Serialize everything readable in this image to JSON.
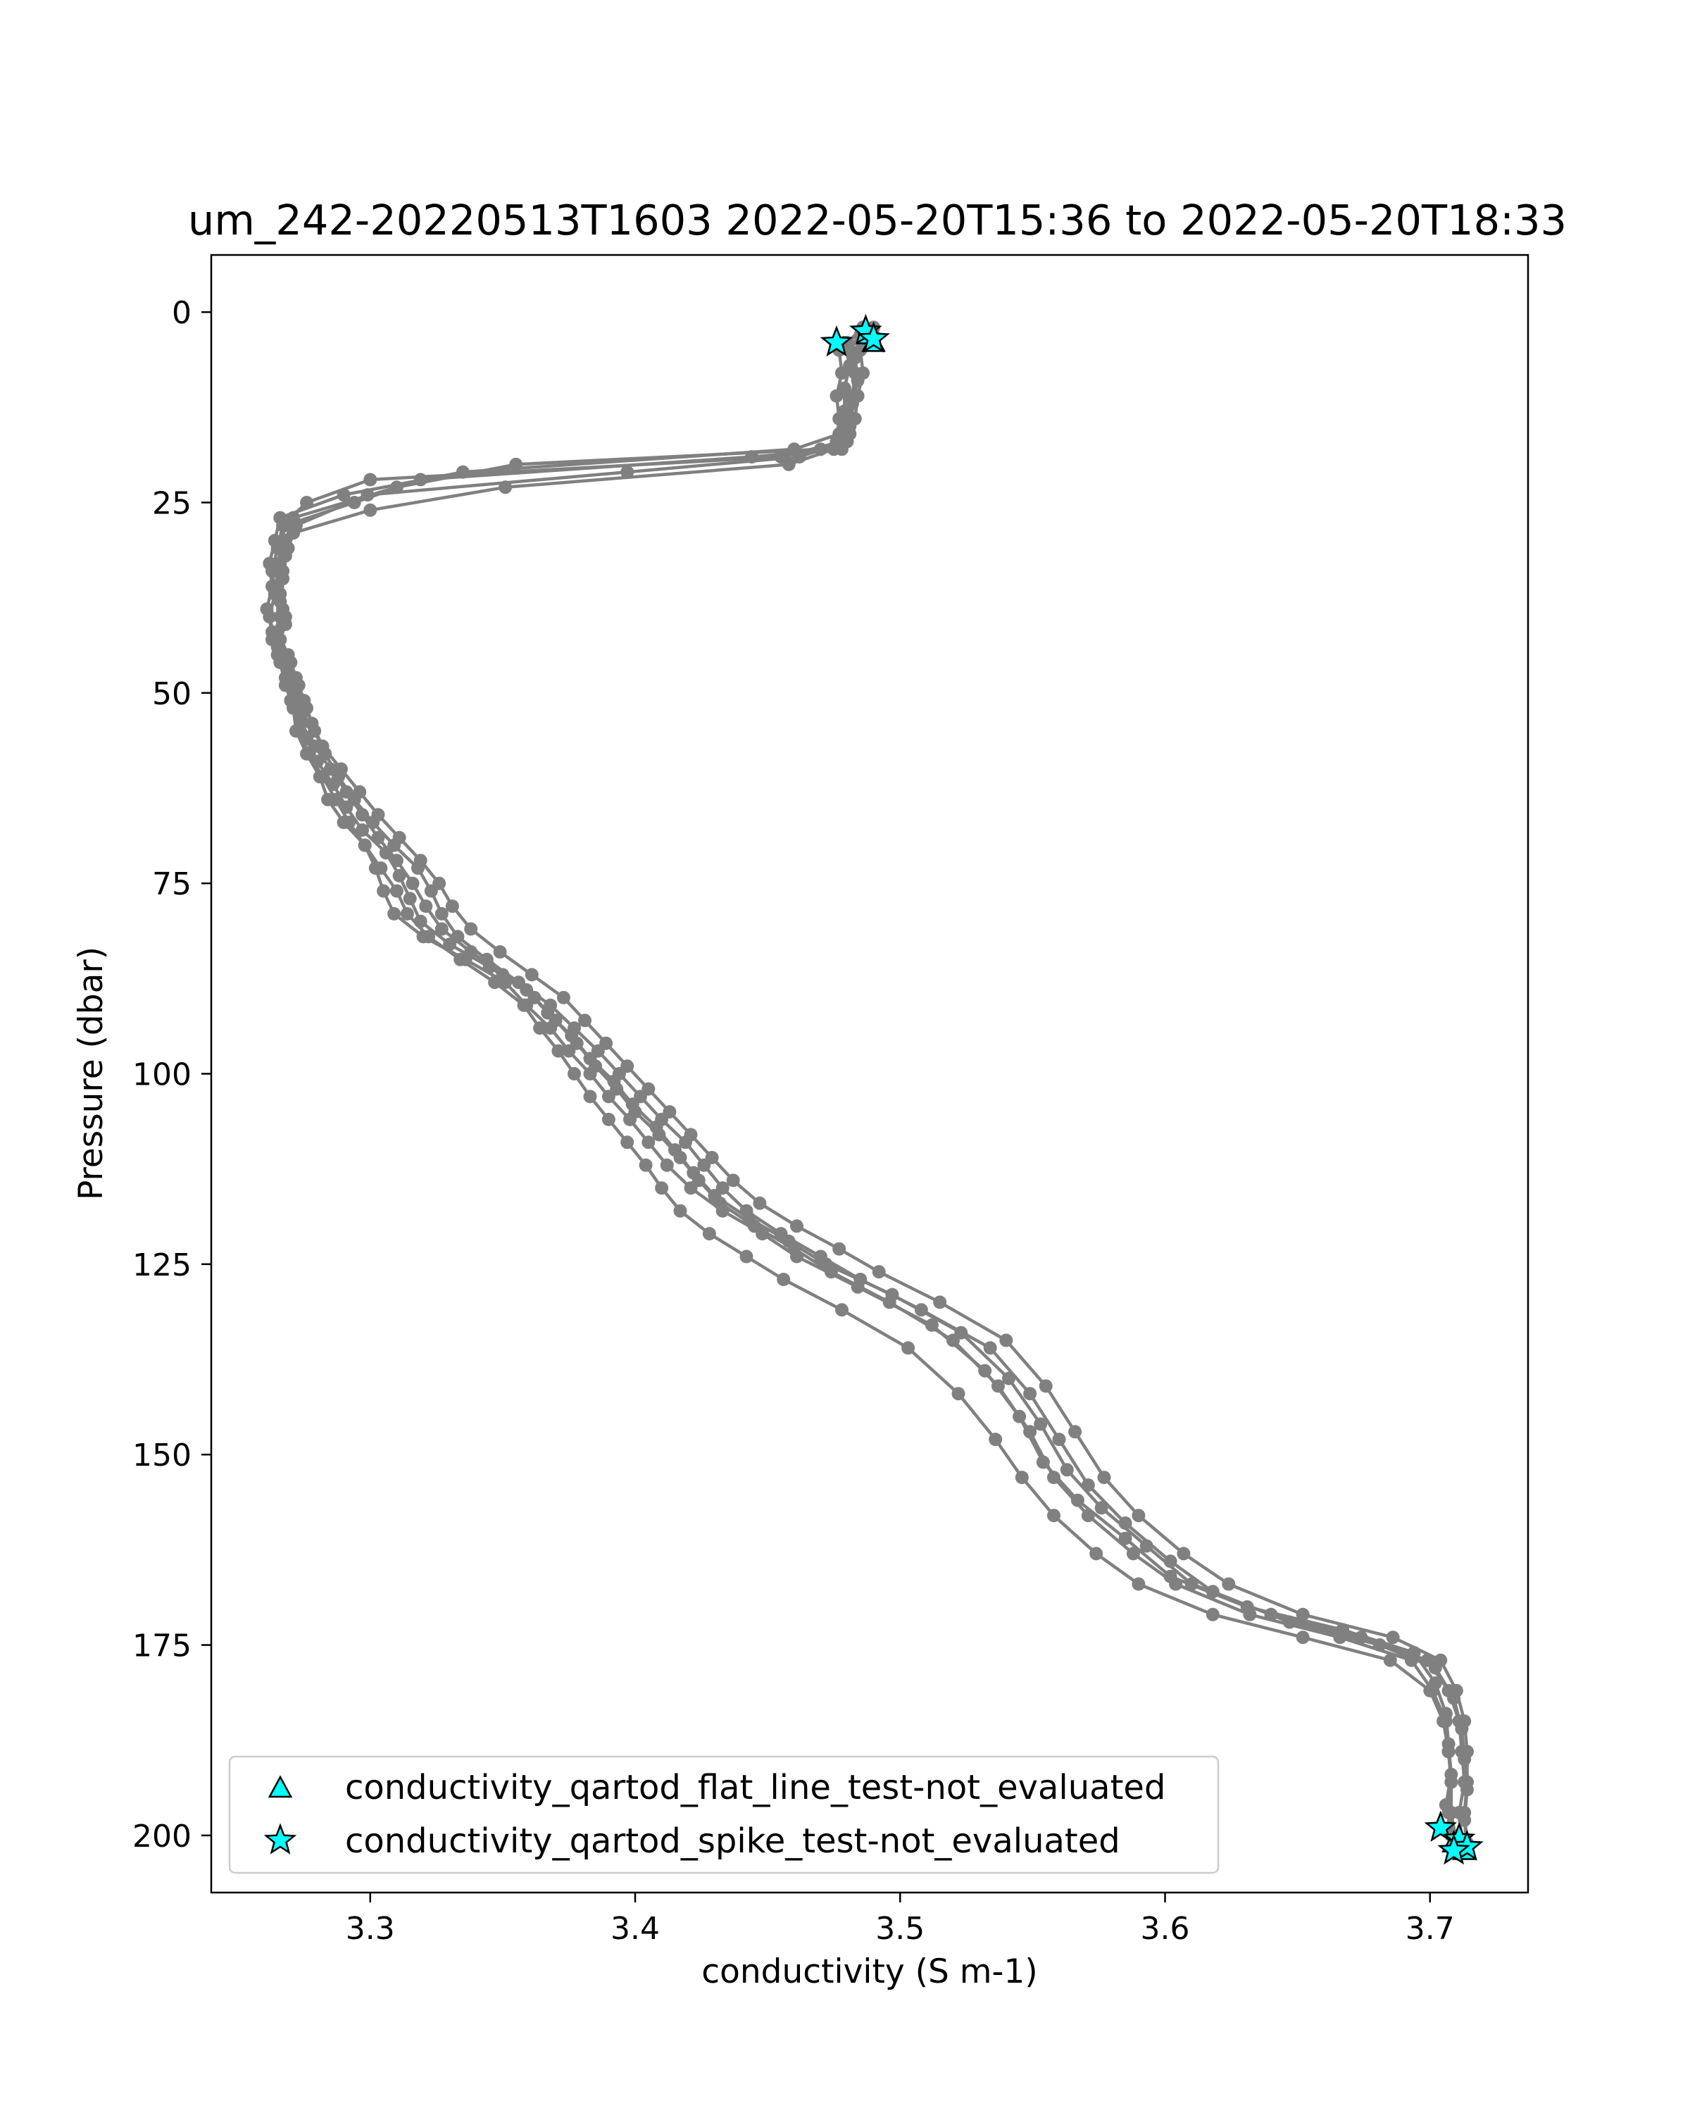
{
  "chart_data": {
    "type": "line",
    "title": "um_242-20220513T1603 2022-05-20T15:36 to 2022-05-20T18:33",
    "xlabel": "conductivity (S m-1)",
    "ylabel": "Pressure (dbar)",
    "xlim": [
      3.24,
      3.737
    ],
    "ylim": [
      207.5,
      -7.5
    ],
    "y_inverted": true,
    "grid": false,
    "x_ticks": [
      3.3,
      3.4,
      3.5,
      3.6,
      3.7
    ],
    "x_tick_labels": [
      "3.3",
      "3.4",
      "3.5",
      "3.6",
      "3.7"
    ],
    "y_ticks": [
      0,
      25,
      50,
      75,
      100,
      125,
      150,
      175,
      200
    ],
    "y_tick_labels": [
      "0",
      "25",
      "50",
      "75",
      "100",
      "125",
      "150",
      "175",
      "200"
    ],
    "legend": {
      "position": "lower-left"
    },
    "colors": {
      "profile_line": "#808080",
      "flag_marker": "#00ffff",
      "marker_edge": "#000000"
    },
    "series": [
      {
        "style": "profile",
        "x": [
          3.487,
          3.477,
          3.478,
          3.476,
          3.477,
          3.476,
          3.478,
          3.444,
          3.319,
          3.294,
          3.268,
          3.266,
          3.265,
          3.264,
          3.266,
          3.263,
          3.267,
          3.27,
          3.271,
          3.272,
          3.276,
          3.281,
          3.284,
          3.29,
          3.298,
          3.302,
          3.305,
          3.309,
          3.32,
          3.336,
          3.351,
          3.359,
          3.368,
          3.375,
          3.383,
          3.39,
          3.398,
          3.405,
          3.412,
          3.421,
          3.433,
          3.448,
          3.461,
          3.484,
          3.512,
          3.532,
          3.545,
          3.554,
          3.567,
          3.585,
          3.602,
          3.631,
          3.667,
          3.694,
          3.702,
          3.706,
          3.707,
          3.708,
          3.706,
          3.708
        ],
        "y": [
          3,
          5,
          8,
          11,
          14,
          17,
          18,
          19,
          22,
          25,
          28,
          31,
          34,
          37,
          40,
          43,
          46,
          49,
          52,
          55,
          58,
          61,
          64,
          67,
          70,
          73,
          76,
          79,
          82,
          85,
          88,
          91,
          94,
          97,
          100,
          103,
          106,
          109,
          112,
          115,
          118,
          121,
          124,
          128,
          133,
          139,
          145,
          151,
          156,
          161,
          166,
          170,
          173,
          176,
          180,
          184,
          188,
          192,
          196,
          200
        ]
      },
      {
        "style": "profile",
        "x": [
          3.49,
          3.479,
          3.481,
          3.479,
          3.48,
          3.478,
          3.475,
          3.458,
          3.351,
          3.3,
          3.271,
          3.268,
          3.267,
          3.266,
          3.268,
          3.265,
          3.269,
          3.272,
          3.274,
          3.276,
          3.28,
          3.286,
          3.291,
          3.297,
          3.306,
          3.311,
          3.315,
          3.319,
          3.33,
          3.345,
          3.359,
          3.367,
          3.376,
          3.383,
          3.392,
          3.399,
          3.408,
          3.415,
          3.422,
          3.43,
          3.443,
          3.458,
          3.472,
          3.497,
          3.523,
          3.541,
          3.553,
          3.563,
          3.576,
          3.593,
          3.61,
          3.64,
          3.674,
          3.699,
          3.707,
          3.711,
          3.712,
          3.713,
          3.711,
          3.712
        ],
        "y": [
          2,
          4,
          7,
          10,
          13,
          16,
          18,
          20,
          23,
          26,
          29,
          32,
          35,
          38,
          41,
          44,
          47,
          50,
          53,
          56,
          59,
          62,
          65,
          68,
          71,
          74,
          77,
          80,
          83,
          86,
          89,
          92,
          95,
          98,
          101,
          104,
          107,
          110,
          113,
          116,
          119,
          122,
          125,
          129,
          134,
          140,
          146,
          152,
          157,
          162,
          167,
          171,
          174,
          177,
          181,
          185,
          189,
          193,
          197,
          201
        ]
      },
      {
        "style": "profile",
        "x": [
          3.485,
          3.481,
          3.483,
          3.482,
          3.482,
          3.48,
          3.462,
          3.397,
          3.299,
          3.272,
          3.269,
          3.267,
          3.266,
          3.268,
          3.266,
          3.27,
          3.273,
          3.276,
          3.279,
          3.283,
          3.288,
          3.294,
          3.301,
          3.309,
          3.318,
          3.323,
          3.327,
          3.333,
          3.344,
          3.356,
          3.368,
          3.377,
          3.386,
          3.394,
          3.402,
          3.41,
          3.419,
          3.426,
          3.433,
          3.442,
          3.455,
          3.47,
          3.485,
          3.508,
          3.534,
          3.549,
          3.56,
          3.571,
          3.585,
          3.602,
          3.618,
          3.647,
          3.681,
          3.702,
          3.709,
          3.712,
          3.713,
          3.714,
          3.713,
          3.714
        ],
        "y": [
          3,
          5,
          8,
          11,
          14,
          17,
          19,
          21,
          24,
          28,
          31,
          34,
          37,
          40,
          43,
          46,
          49,
          52,
          55,
          58,
          61,
          64,
          67,
          70,
          73,
          76,
          79,
          82,
          85,
          88,
          91,
          94,
          97,
          100,
          103,
          106,
          109,
          112,
          115,
          118,
          121,
          124,
          127,
          131,
          136,
          142,
          148,
          154,
          159,
          164,
          168,
          172,
          175,
          178,
          182,
          186,
          190,
          194,
          198,
          202
        ]
      },
      {
        "style": "profile",
        "x": [
          3.488,
          3.483,
          3.484,
          3.482,
          3.481,
          3.478,
          3.455,
          3.3,
          3.276,
          3.267,
          3.265,
          3.263,
          3.264,
          3.262,
          3.264,
          3.266,
          3.268,
          3.271,
          3.273,
          3.277,
          3.282,
          3.287,
          3.292,
          3.298,
          3.304,
          3.31,
          3.314,
          3.322,
          3.334,
          3.347,
          3.358,
          3.364,
          3.371,
          3.377,
          3.383,
          3.39,
          3.397,
          3.404,
          3.41,
          3.417,
          3.428,
          3.442,
          3.456,
          3.478,
          3.503,
          3.522,
          3.536,
          3.546,
          3.558,
          3.574,
          3.59,
          3.618,
          3.652,
          3.685,
          3.7,
          3.705,
          3.707,
          3.708,
          3.708,
          3.71
        ],
        "y": [
          4,
          6,
          9,
          12,
          15,
          17,
          19,
          22,
          25,
          28,
          31,
          34,
          37,
          40,
          43,
          46,
          49,
          52,
          55,
          58,
          61,
          64,
          67,
          70,
          73,
          76,
          79,
          82,
          85,
          88,
          91,
          94,
          97,
          100,
          103,
          106,
          109,
          112,
          115,
          118,
          121,
          124,
          127,
          131,
          136,
          142,
          148,
          153,
          158,
          163,
          167,
          171,
          174,
          177,
          181,
          185,
          189,
          193,
          197,
          201
        ]
      },
      {
        "style": "profile",
        "x": [
          3.49,
          3.485,
          3.486,
          3.484,
          3.483,
          3.481,
          3.47,
          3.355,
          3.31,
          3.271,
          3.268,
          3.266,
          3.265,
          3.267,
          3.265,
          3.269,
          3.272,
          3.275,
          3.278,
          3.282,
          3.289,
          3.296,
          3.303,
          3.311,
          3.319,
          3.326,
          3.331,
          3.338,
          3.349,
          3.361,
          3.373,
          3.381,
          3.389,
          3.397,
          3.405,
          3.413,
          3.421,
          3.429,
          3.437,
          3.447,
          3.461,
          3.477,
          3.492,
          3.515,
          3.54,
          3.555,
          3.566,
          3.577,
          3.59,
          3.607,
          3.624,
          3.652,
          3.686,
          3.704,
          3.71,
          3.713,
          3.714,
          3.714,
          3.713,
          3.714
        ],
        "y": [
          3,
          5,
          8,
          11,
          14,
          16,
          18,
          20,
          23,
          27,
          30,
          33,
          36,
          39,
          42,
          45,
          48,
          51,
          54,
          57,
          60,
          63,
          66,
          69,
          72,
          75,
          78,
          81,
          84,
          87,
          90,
          93,
          96,
          99,
          102,
          105,
          108,
          111,
          114,
          117,
          120,
          123,
          126,
          130,
          135,
          141,
          147,
          153,
          158,
          163,
          167,
          171,
          174,
          177,
          181,
          185,
          189,
          193,
          197,
          201
        ]
      },
      {
        "style": "profile",
        "x": [
          3.486,
          3.48,
          3.481,
          3.479,
          3.479,
          3.477,
          3.46,
          3.335,
          3.29,
          3.266,
          3.264,
          3.262,
          3.263,
          3.261,
          3.263,
          3.265,
          3.268,
          3.27,
          3.274,
          3.279,
          3.285,
          3.291,
          3.297,
          3.303,
          3.31,
          3.316,
          3.321,
          3.327,
          3.338,
          3.35,
          3.362,
          3.37,
          3.378,
          3.385,
          3.393,
          3.4,
          3.409,
          3.417,
          3.424,
          3.432,
          3.445,
          3.46,
          3.474,
          3.496,
          3.52,
          3.537,
          3.549,
          3.558,
          3.571,
          3.588,
          3.604,
          3.632,
          3.666,
          3.693,
          3.701,
          3.706,
          3.707,
          3.708,
          3.707,
          3.709
        ],
        "y": [
          2,
          4,
          7,
          10,
          13,
          16,
          18,
          21,
          24,
          27,
          30,
          33,
          36,
          39,
          42,
          45,
          48,
          51,
          54,
          57,
          60,
          63,
          66,
          69,
          72,
          75,
          78,
          81,
          84,
          87,
          90,
          93,
          96,
          99,
          102,
          105,
          108,
          111,
          114,
          117,
          120,
          123,
          126,
          130,
          135,
          141,
          147,
          153,
          158,
          163,
          167,
          171,
          174,
          177,
          181,
          185,
          189,
          193,
          197,
          200
        ]
      },
      {
        "style": "flag",
        "name": "conductivity_qartod_flat_line_test-not_evaluated",
        "marker": "triangle",
        "x": [
          3.49,
          3.488,
          3.709,
          3.713
        ],
        "y": [
          4,
          3,
          201,
          202
        ]
      },
      {
        "style": "flag",
        "name": "conductivity_qartod_spike_test-not_evaluated",
        "marker": "star",
        "x": [
          3.476,
          3.487,
          3.49,
          3.704,
          3.711,
          3.714,
          3.709
        ],
        "y": [
          4,
          2.5,
          3.5,
          199,
          200.5,
          201.5,
          202
        ]
      }
    ]
  }
}
